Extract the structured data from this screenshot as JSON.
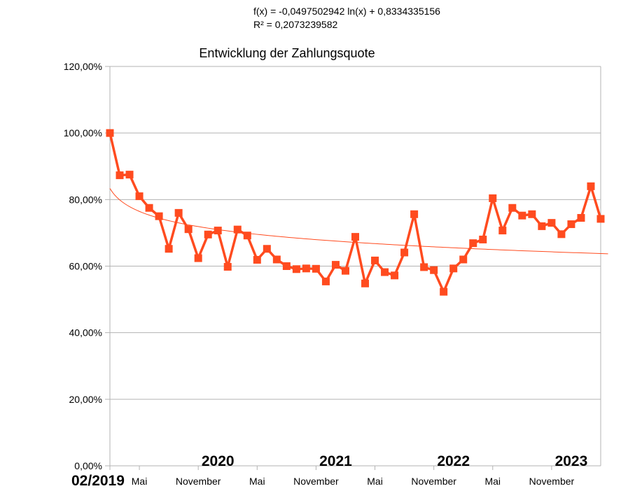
{
  "chart_data": {
    "type": "line",
    "title": "Entwicklung der Zahlungsquote",
    "trendline": {
      "equation": "f(x) = -0,0497502942 ln(x) + 0,8334335156",
      "r_squared": "R² = 0,2073239582",
      "a": -0.0497502942,
      "b": 0.8334335156
    },
    "ylim": [
      0,
      1.2
    ],
    "yticks": [
      0,
      0.2,
      0.4,
      0.6,
      0.8,
      1.0,
      1.2
    ],
    "ytick_labels": [
      "0,00%",
      "20,00%",
      "40,00%",
      "60,00%",
      "80,00%",
      "100,00%",
      "120,00%"
    ],
    "x_start_label": "02/2019",
    "month_labels": [
      {
        "index": 3,
        "label": "Mai"
      },
      {
        "index": 9,
        "label": "November"
      },
      {
        "index": 15,
        "label": "Mai"
      },
      {
        "index": 21,
        "label": "November"
      },
      {
        "index": 27,
        "label": "Mai"
      },
      {
        "index": 33,
        "label": "November"
      },
      {
        "index": 39,
        "label": "Mai"
      },
      {
        "index": 45,
        "label": "November"
      }
    ],
    "year_labels": [
      {
        "index": 11,
        "label": "2020"
      },
      {
        "index": 23,
        "label": "2021"
      },
      {
        "index": 35,
        "label": "2022"
      },
      {
        "index": 47,
        "label": "2023"
      }
    ],
    "series": [
      {
        "values": [
          1.0,
          0.873,
          0.875,
          0.81,
          0.775,
          0.75,
          0.652,
          0.76,
          0.711,
          0.624,
          0.695,
          0.707,
          0.598,
          0.71,
          0.692,
          0.619,
          0.652,
          0.62,
          0.6,
          0.591,
          0.593,
          0.592,
          0.554,
          0.604,
          0.586,
          0.688,
          0.548,
          0.617,
          0.582,
          0.572,
          0.641,
          0.756,
          0.597,
          0.588,
          0.523,
          0.593,
          0.62,
          0.669,
          0.68,
          0.804,
          0.707,
          0.775,
          0.752,
          0.756,
          0.72,
          0.73,
          0.696,
          0.726,
          0.745,
          0.84,
          0.742
        ]
      }
    ],
    "colors": {
      "series": "#ff4b1f",
      "trend": "#ff4b1f",
      "grid": "#b3b3b3",
      "axis": "#b3b3b3"
    },
    "grid": true
  }
}
